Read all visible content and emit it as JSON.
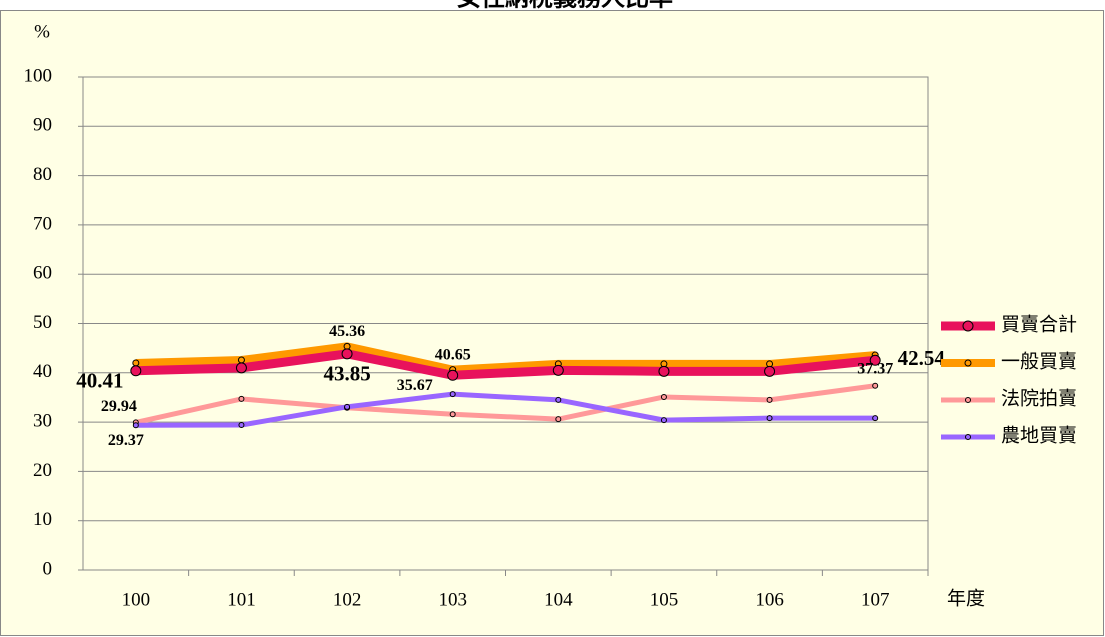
{
  "chart_data": {
    "type": "line",
    "title": "女性納稅義務人比率",
    "ylabel": "%",
    "xlabel": "年度",
    "categories": [
      "100",
      "101",
      "102",
      "103",
      "104",
      "105",
      "106",
      "107"
    ],
    "ylim": [
      0,
      100
    ],
    "yticks": [
      0,
      10,
      20,
      30,
      40,
      50,
      60,
      70,
      80,
      90,
      100
    ],
    "grid": true,
    "legend": "right",
    "series": [
      {
        "name": "一般買賣",
        "color": "#ff9900",
        "values": [
          42.0,
          42.6,
          45.36,
          40.65,
          41.8,
          41.8,
          41.8,
          43.6
        ],
        "value_labels": [
          null,
          null,
          "45.36",
          "40.65",
          null,
          null,
          null,
          null
        ]
      },
      {
        "name": "買賣合計",
        "color": "#e8125c",
        "values": [
          40.41,
          41.0,
          43.85,
          39.5,
          40.5,
          40.3,
          40.3,
          42.54
        ],
        "value_labels": [
          "40.41",
          null,
          "43.85",
          null,
          null,
          null,
          null,
          "42.54"
        ]
      },
      {
        "name": "法院拍賣",
        "color": "#ff9999",
        "values": [
          29.94,
          34.7,
          32.9,
          31.6,
          30.6,
          35.1,
          34.5,
          37.37
        ],
        "value_labels": [
          "29.94",
          null,
          null,
          null,
          null,
          null,
          null,
          "37.37"
        ]
      },
      {
        "name": "農地買賣",
        "color": "#9966ff",
        "values": [
          29.37,
          29.4,
          33.1,
          35.67,
          34.5,
          30.4,
          30.8,
          30.8
        ],
        "value_labels": [
          "29.37",
          null,
          null,
          "35.67",
          null,
          null,
          null,
          null
        ]
      }
    ]
  }
}
